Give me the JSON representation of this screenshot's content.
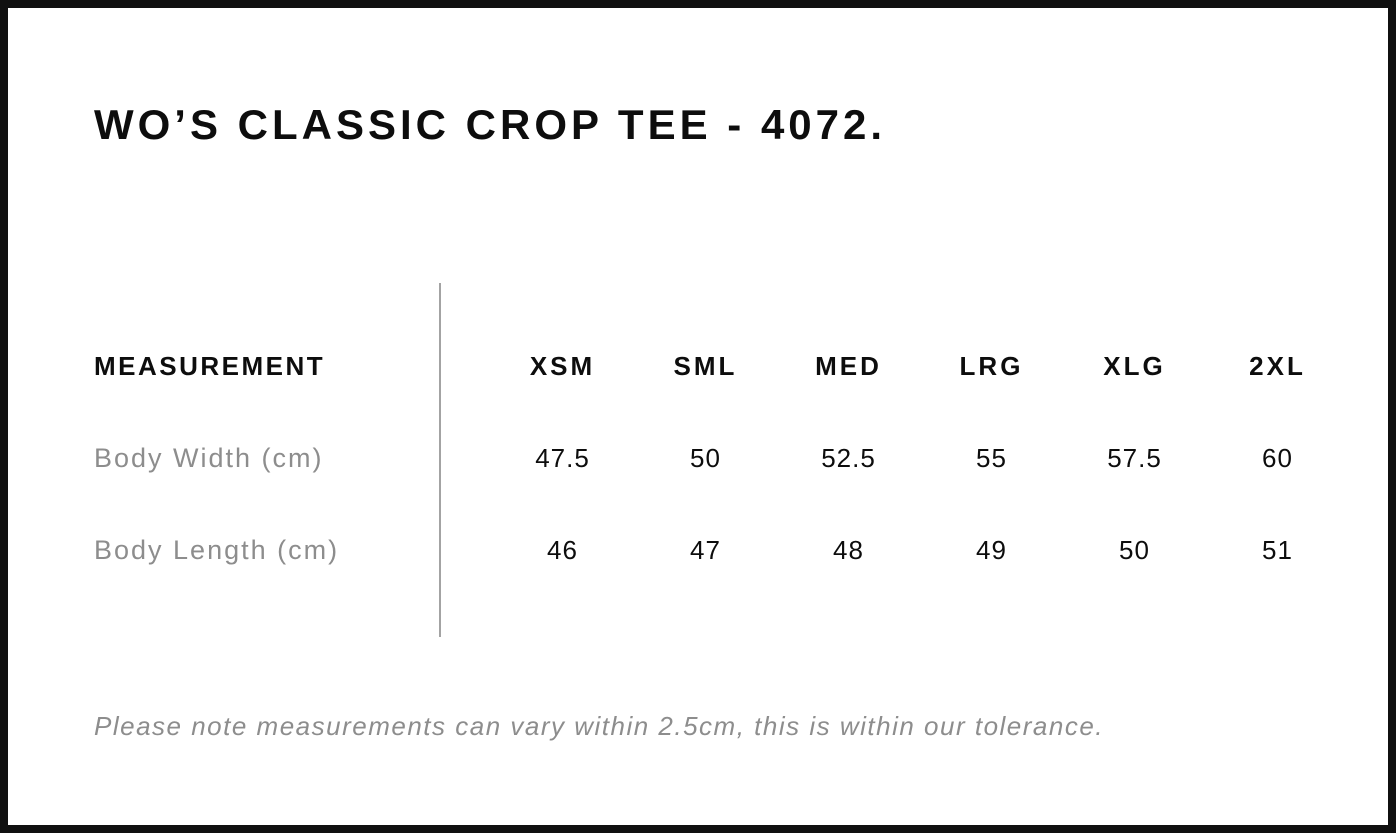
{
  "title": "WO’S CLASSIC CROP TEE - 4072.",
  "table": {
    "measurement_header": "MEASUREMENT",
    "sizes": [
      "XSM",
      "SML",
      "MED",
      "LRG",
      "XLG",
      "2XL"
    ],
    "rows": [
      {
        "label": "Body Width (cm)",
        "values": [
          "47.5",
          "50",
          "52.5",
          "55",
          "57.5",
          "60"
        ]
      },
      {
        "label": "Body Length (cm)",
        "values": [
          "46",
          "47",
          "48",
          "49",
          "50",
          "51"
        ]
      }
    ]
  },
  "note": "Please note measurements can vary within 2.5cm, this is within our tolerance.",
  "colors": {
    "text": "#0d0d0d",
    "muted_gray": "#8d8d8d",
    "divider_gray": "#a3a3a3",
    "frame_border": "#101010",
    "background": "#ffffff"
  }
}
